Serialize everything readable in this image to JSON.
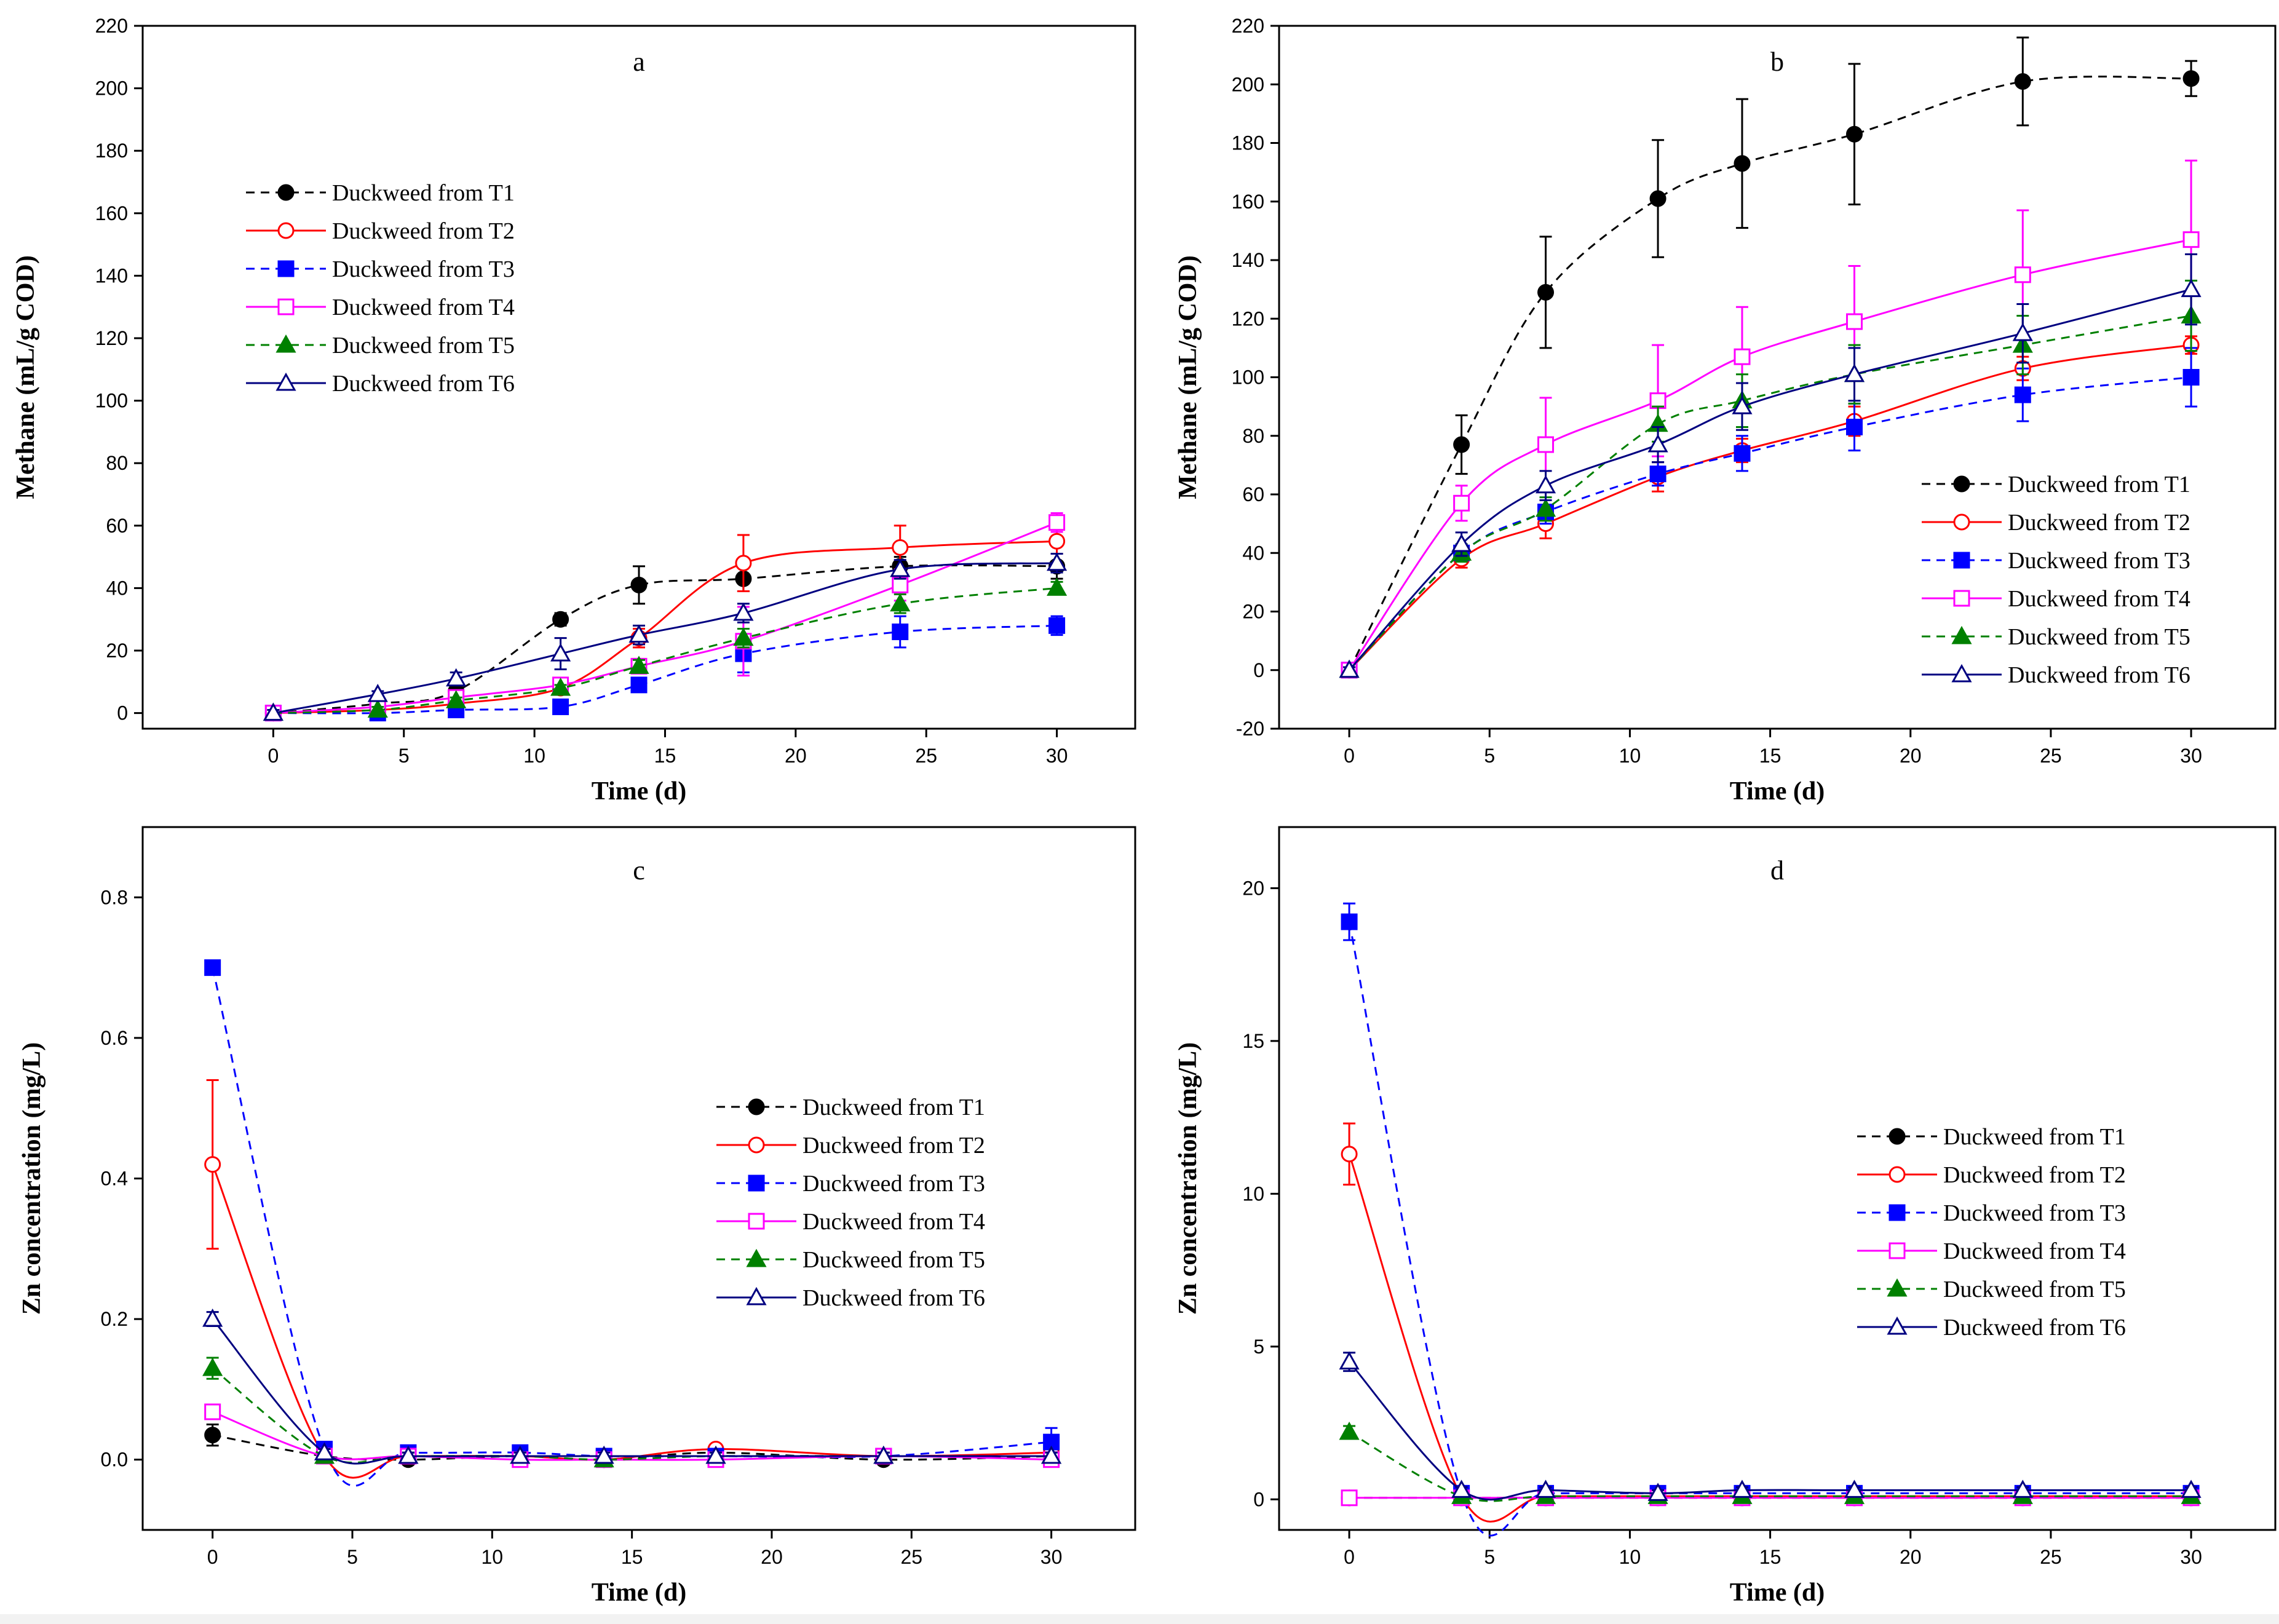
{
  "chart_data": [
    {
      "id": "a",
      "type": "line",
      "title": "a",
      "xlabel": "Time (d)",
      "ylabel": "Methane (mL/g COD)",
      "xlim": [
        -5,
        33
      ],
      "ylim": [
        -5,
        220
      ],
      "xticks": [
        0,
        5,
        10,
        15,
        20,
        25,
        30
      ],
      "yticks": [
        0,
        20,
        40,
        60,
        80,
        100,
        120,
        140,
        160,
        180,
        200,
        220
      ],
      "x": [
        0,
        4,
        7,
        11,
        14,
        18,
        24,
        30
      ],
      "legend_position": "upper-left",
      "series": [
        {
          "name": "Duckweed from T1",
          "values": [
            0,
            3,
            7,
            30,
            41,
            43,
            47,
            47
          ],
          "errors": [
            2,
            1,
            2,
            2,
            6,
            4,
            3,
            4
          ]
        },
        {
          "name": "Duckweed from T2",
          "values": [
            0,
            1,
            3,
            8,
            24,
            48,
            53,
            55
          ],
          "errors": [
            1,
            1,
            1,
            1,
            3,
            9,
            7,
            4
          ]
        },
        {
          "name": "Duckweed from T3",
          "values": [
            0,
            0,
            1,
            2,
            9,
            19,
            26,
            28
          ],
          "errors": [
            1,
            1,
            1,
            1,
            2,
            6,
            5,
            3
          ]
        },
        {
          "name": "Duckweed from T4",
          "values": [
            0,
            2,
            5,
            9,
            15,
            23,
            41,
            61
          ],
          "errors": [
            1,
            1,
            1,
            1,
            2,
            11,
            5,
            3
          ]
        },
        {
          "name": "Duckweed from T5",
          "values": [
            0,
            1,
            4,
            8,
            15,
            24,
            35,
            40
          ],
          "errors": [
            1,
            1,
            1,
            1,
            2,
            3,
            3,
            2
          ]
        },
        {
          "name": "Duckweed from T6",
          "values": [
            0,
            6,
            11,
            19,
            25,
            32,
            46,
            48
          ],
          "errors": [
            1,
            1,
            2,
            5,
            3,
            3,
            3,
            3
          ]
        }
      ]
    },
    {
      "id": "b",
      "type": "line",
      "title": "b",
      "xlabel": "Time (d)",
      "ylabel": "Methane (mL/g COD)",
      "xlim": [
        -2.5,
        33
      ],
      "ylim": [
        -20,
        220
      ],
      "xticks": [
        0,
        5,
        10,
        15,
        20,
        25,
        30
      ],
      "yticks": [
        -20,
        0,
        20,
        40,
        60,
        80,
        100,
        120,
        140,
        160,
        180,
        200,
        220
      ],
      "x": [
        0,
        4,
        7,
        11,
        14,
        18,
        24,
        30
      ],
      "legend_position": "lower-right",
      "series": [
        {
          "name": "Duckweed from T1",
          "values": [
            0,
            77,
            129,
            161,
            173,
            183,
            201,
            202
          ],
          "errors": [
            1,
            10,
            19,
            20,
            22,
            24,
            15,
            6
          ]
        },
        {
          "name": "Duckweed from T2",
          "values": [
            0,
            38,
            50,
            66,
            75,
            85,
            103,
            111
          ],
          "errors": [
            1,
            3,
            5,
            5,
            4,
            5,
            4,
            3
          ]
        },
        {
          "name": "Duckweed from T3",
          "values": [
            0,
            40,
            54,
            67,
            74,
            83,
            94,
            100
          ],
          "errors": [
            1,
            3,
            4,
            4,
            6,
            8,
            9,
            10
          ]
        },
        {
          "name": "Duckweed from T4",
          "values": [
            0,
            57,
            77,
            92,
            107,
            119,
            135,
            147
          ],
          "errors": [
            1,
            6,
            16,
            19,
            17,
            19,
            22,
            27
          ]
        },
        {
          "name": "Duckweed from T5",
          "values": [
            0,
            40,
            55,
            84,
            92,
            101,
            111,
            121
          ],
          "errors": [
            1,
            3,
            4,
            6,
            9,
            10,
            10,
            12
          ]
        },
        {
          "name": "Duckweed from T6",
          "values": [
            0,
            43,
            63,
            77,
            90,
            101,
            115,
            130
          ],
          "errors": [
            1,
            4,
            5,
            6,
            8,
            9,
            10,
            12
          ]
        }
      ]
    },
    {
      "id": "c",
      "type": "line",
      "title": "c",
      "xlabel": "Time (d)",
      "ylabel": "Zn concentration (mg/L)",
      "xlim": [
        -2.5,
        33
      ],
      "ylim": [
        -0.1,
        0.9
      ],
      "xticks": [
        0,
        5,
        10,
        15,
        20,
        25,
        30
      ],
      "yticks": [
        0.0,
        0.2,
        0.4,
        0.6,
        0.8
      ],
      "yticklabels": [
        "0.0",
        "0.2",
        "0.4",
        "0.6",
        "0.8"
      ],
      "x": [
        0,
        4,
        7,
        11,
        14,
        18,
        24,
        30
      ],
      "legend_position": "center-right",
      "series": [
        {
          "name": "Duckweed from T1",
          "values": [
            0.035,
            0.005,
            0.0,
            0.005,
            0.0,
            0.01,
            0.0,
            0.005
          ],
          "errors": [
            0.015,
            0.005,
            0.005,
            0.005,
            0.005,
            0.005,
            0.005,
            0.005
          ]
        },
        {
          "name": "Duckweed from T2",
          "values": [
            0.42,
            0.005,
            0.005,
            0.005,
            0.0,
            0.015,
            0.005,
            0.01
          ],
          "errors": [
            0.12,
            0.005,
            0.005,
            0.005,
            0.005,
            0.005,
            0.005,
            0.005
          ]
        },
        {
          "name": "Duckweed from T3",
          "values": [
            0.7,
            0.015,
            0.01,
            0.01,
            0.005,
            0.005,
            0.005,
            0.025
          ],
          "errors": [
            0.005,
            0.005,
            0.005,
            0.005,
            0.005,
            0.005,
            0.005,
            0.02
          ]
        },
        {
          "name": "Duckweed from T4",
          "values": [
            0.068,
            0.005,
            0.005,
            0.0,
            0.0,
            0.0,
            0.005,
            0.0
          ],
          "errors": [
            0.01,
            0.005,
            0.005,
            0.005,
            0.005,
            0.005,
            0.005,
            0.005
          ]
        },
        {
          "name": "Duckweed from T5",
          "values": [
            0.13,
            0.005,
            0.005,
            0.005,
            0.0,
            0.005,
            0.005,
            0.005
          ],
          "errors": [
            0.015,
            0.005,
            0.005,
            0.005,
            0.005,
            0.005,
            0.005,
            0.005
          ]
        },
        {
          "name": "Duckweed from T6",
          "values": [
            0.2,
            0.01,
            0.005,
            0.005,
            0.005,
            0.005,
            0.005,
            0.005
          ],
          "errors": [
            0.01,
            0.005,
            0.005,
            0.005,
            0.005,
            0.005,
            0.005,
            0.005
          ]
        }
      ]
    },
    {
      "id": "d",
      "type": "line",
      "title": "d",
      "xlabel": "Time (d)",
      "ylabel": "Zn concentration (mg/L)",
      "xlim": [
        -2.5,
        33
      ],
      "ylim": [
        -1,
        22
      ],
      "xticks": [
        0,
        5,
        10,
        15,
        20,
        25,
        30
      ],
      "yticks": [
        0,
        5,
        10,
        15,
        20
      ],
      "x": [
        0,
        4,
        7,
        11,
        14,
        18,
        24,
        30
      ],
      "legend_position": "center-right",
      "series": [
        {
          "name": "Duckweed from T1",
          "values": [
            0.05,
            0.05,
            0.05,
            0.05,
            0.05,
            0.05,
            0.05,
            0.05
          ],
          "errors": [
            0.1,
            0.1,
            0.1,
            0.1,
            0.1,
            0.1,
            0.1,
            0.1
          ]
        },
        {
          "name": "Duckweed from T2",
          "values": [
            11.3,
            0.1,
            0.1,
            0.1,
            0.1,
            0.1,
            0.1,
            0.1
          ],
          "errors": [
            1.0,
            0.1,
            0.1,
            0.1,
            0.1,
            0.1,
            0.1,
            0.1
          ]
        },
        {
          "name": "Duckweed from T3",
          "values": [
            18.9,
            0.2,
            0.2,
            0.2,
            0.2,
            0.2,
            0.2,
            0.2
          ],
          "errors": [
            0.6,
            0.1,
            0.1,
            0.1,
            0.1,
            0.1,
            0.1,
            0.1
          ]
        },
        {
          "name": "Duckweed from T4",
          "values": [
            0.05,
            0.05,
            0.05,
            0.05,
            0.05,
            0.05,
            0.05,
            0.05
          ],
          "errors": [
            0.1,
            0.1,
            0.1,
            0.1,
            0.1,
            0.1,
            0.1,
            0.1
          ]
        },
        {
          "name": "Duckweed from T5",
          "values": [
            2.2,
            0.1,
            0.1,
            0.1,
            0.1,
            0.1,
            0.1,
            0.1
          ],
          "errors": [
            0.2,
            0.1,
            0.1,
            0.1,
            0.1,
            0.1,
            0.1,
            0.1
          ]
        },
        {
          "name": "Duckweed from T6",
          "values": [
            4.5,
            0.3,
            0.3,
            0.2,
            0.3,
            0.3,
            0.3,
            0.3
          ],
          "errors": [
            0.3,
            0.1,
            0.1,
            0.1,
            0.1,
            0.1,
            0.1,
            0.1
          ]
        }
      ]
    }
  ],
  "series_styles": [
    {
      "color": "#000000",
      "marker": "circle",
      "filled": true,
      "dash": "14,10",
      "smooth": true
    },
    {
      "color": "#ff0000",
      "marker": "circle",
      "filled": false,
      "dash": "",
      "smooth": true
    },
    {
      "color": "#0000ff",
      "marker": "square",
      "filled": true,
      "dash": "14,10",
      "smooth": true
    },
    {
      "color": "#ff00ff",
      "marker": "square",
      "filled": false,
      "dash": "",
      "smooth": true
    },
    {
      "color": "#008000",
      "marker": "triangle",
      "filled": true,
      "dash": "14,10",
      "smooth": true
    },
    {
      "color": "#000080",
      "marker": "triangle",
      "filled": false,
      "dash": "",
      "smooth": true
    }
  ]
}
